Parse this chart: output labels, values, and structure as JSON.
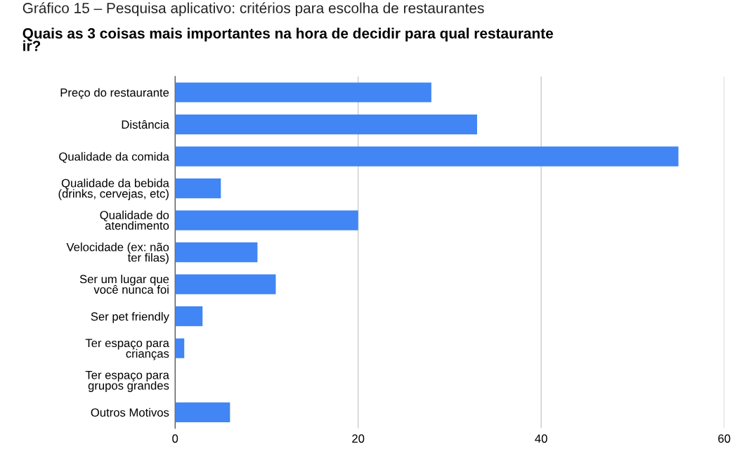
{
  "chart_data": {
    "type": "bar",
    "orientation": "horizontal",
    "title": "Quais as 3 coisas mais importantes na hora de decidir para qual restaurante\nir?",
    "annotations": [
      "Gráfico 15 – Pesquisa aplicativo: critérios para escolha de restaurantes"
    ],
    "categories": [
      "Preço do restaurante",
      "Distância",
      "Qualidade da comida",
      "Qualidade da bebida\n(drinks, cervejas, etc)",
      "Qualidade do\natendimento",
      "Velocidade (ex: não\nter filas)",
      "Ser um lugar que\nvocê nunca foi",
      "Ser pet friendly",
      "Ter espaço para\ncrianças",
      "Ter espaço para\ngrupos grandes",
      "Outros Motivos"
    ],
    "values": [
      28,
      33,
      55,
      5,
      20,
      9,
      11,
      3,
      1,
      0,
      6
    ],
    "color": "#4285f4",
    "xlim": [
      0,
      60
    ],
    "xticks": [
      0,
      20,
      40,
      60
    ],
    "grid": "x",
    "legend": false
  }
}
